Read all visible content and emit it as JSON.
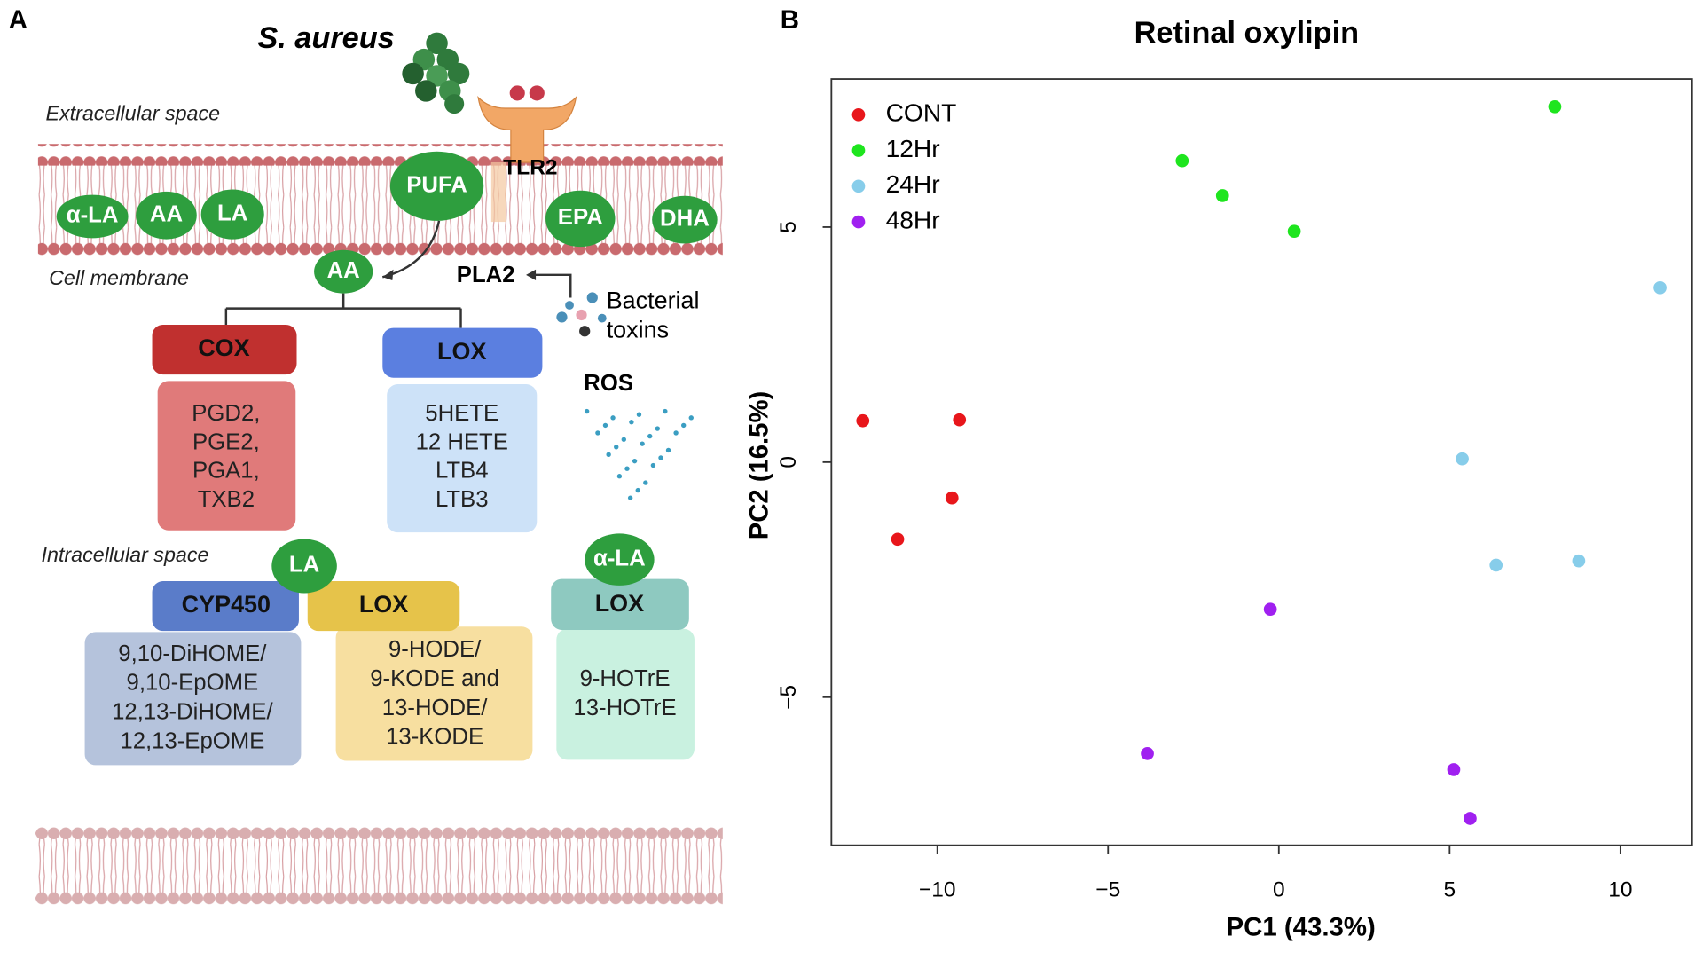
{
  "panel_a": {
    "label": "A",
    "organism": "S. aureus",
    "extracellular": "Extracellular space",
    "membrane": "Cell membrane",
    "intracellular": "Intracellular space",
    "receptor": "TLR2",
    "pufa": "PUFA",
    "lipids": [
      "α-LA",
      "AA",
      "LA",
      "EPA",
      "DHA"
    ],
    "released": "AA",
    "enzyme": "PLA2",
    "toxins": [
      "Bacterial",
      "toxins"
    ],
    "ros": "ROS",
    "pathways": [
      {
        "enzyme": "COX",
        "products": [
          "PGD2,",
          "PGE2,",
          "PGA1,",
          "TXB2"
        ]
      },
      {
        "enzyme": "LOX",
        "products": [
          "5HETE",
          "12 HETE",
          "LTB4",
          "LTB3"
        ]
      },
      {
        "substrate": "LA",
        "enzyme": "CYP450",
        "products": [
          "9,10-DiHOME/",
          "9,10-EpOME",
          "12,13-DiHOME/",
          "12,13-EpOME"
        ]
      },
      {
        "enzyme": "LOX",
        "products": [
          "9-HODE/",
          "9-KODE and",
          "13-HODE/",
          "13-KODE"
        ]
      },
      {
        "substrate": "α-LA",
        "enzyme": "LOX",
        "products": [
          "9-HOTrE",
          "13-HOTrE"
        ]
      }
    ]
  },
  "chart_data": {
    "type": "scatter",
    "panel": "B",
    "title": "Retinal oxylipin",
    "xlabel": "PC1 (43.3%)",
    "ylabel": "PC2 (16.5%)",
    "xlim": [
      -13.1,
      12.1
    ],
    "ylim": [
      -8.15,
      8.15
    ],
    "xticks": [
      {
        "value": -10,
        "label": "−10"
      },
      {
        "value": -5,
        "label": "−5"
      },
      0,
      5,
      10
    ],
    "yticks": [
      {
        "value": -5,
        "label": "−5"
      },
      0,
      5
    ],
    "legend": "top-left",
    "series": [
      {
        "name": "CONT",
        "color": "#e8161b",
        "x": [
          -12.18,
          -9.35,
          -9.57,
          -11.16
        ],
        "values": [
          0.88,
          0.9,
          -0.76,
          -1.64
        ]
      },
      {
        "name": "12Hr",
        "color": "#1ee51e",
        "x": [
          8.08,
          -2.83,
          -1.65,
          0.45
        ],
        "values": [
          7.56,
          6.41,
          5.67,
          4.91
        ]
      },
      {
        "name": "24Hr",
        "color": "#87cdea",
        "x": [
          11.16,
          5.37,
          6.36,
          8.78
        ],
        "values": [
          3.71,
          0.07,
          -2.19,
          -2.1
        ]
      },
      {
        "name": "48Hr",
        "color": "#a020f0",
        "x": [
          -0.25,
          -3.85,
          5.12,
          5.6
        ],
        "values": [
          -3.13,
          -6.2,
          -6.54,
          -7.58
        ]
      }
    ]
  }
}
